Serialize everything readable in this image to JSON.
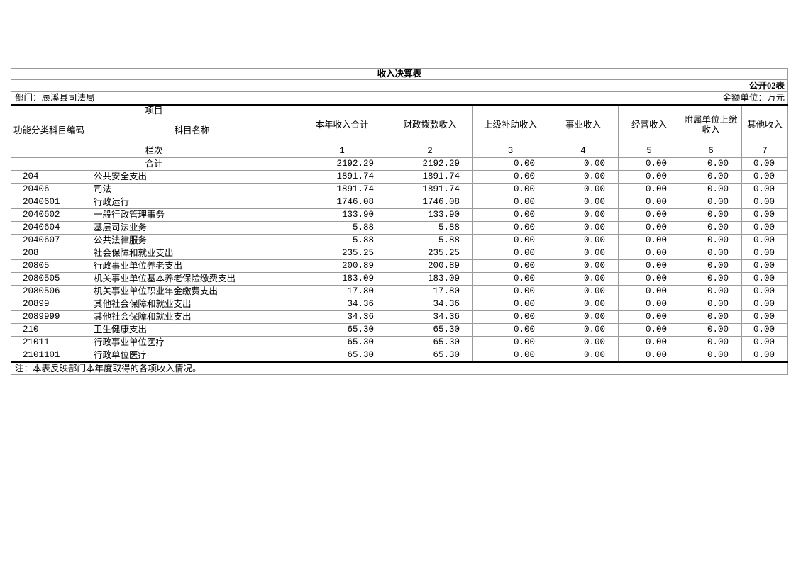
{
  "table": {
    "title": "收入决算表",
    "public_label": "公开02表",
    "department_label": "部门：辰溪县司法局",
    "unit_label": "金额单位：万元",
    "header": {
      "project": "项目",
      "code": "功能分类科目编码",
      "subject_name": "科目名称",
      "columns": [
        "本年收入合计",
        "财政拨款收入",
        "上级补助收入",
        "事业收入",
        "经营收入",
        "附属单位上缴收入",
        "其他收入"
      ],
      "lanci_label": "栏次",
      "lanci_numbers": [
        "1",
        "2",
        "3",
        "4",
        "5",
        "6",
        "7"
      ]
    },
    "rows": [
      {
        "total": true,
        "code": "",
        "name": "合计",
        "values": [
          "2192.29",
          "2192.29",
          "0.00",
          "0.00",
          "0.00",
          "0.00",
          "0.00"
        ]
      },
      {
        "total": false,
        "code": "204",
        "name": "公共安全支出",
        "values": [
          "1891.74",
          "1891.74",
          "0.00",
          "0.00",
          "0.00",
          "0.00",
          "0.00"
        ]
      },
      {
        "total": false,
        "code": "20406",
        "name": "司法",
        "values": [
          "1891.74",
          "1891.74",
          "0.00",
          "0.00",
          "0.00",
          "0.00",
          "0.00"
        ]
      },
      {
        "total": false,
        "code": "2040601",
        "name": "行政运行",
        "values": [
          "1746.08",
          "1746.08",
          "0.00",
          "0.00",
          "0.00",
          "0.00",
          "0.00"
        ]
      },
      {
        "total": false,
        "code": "2040602",
        "name": "一般行政管理事务",
        "values": [
          "133.90",
          "133.90",
          "0.00",
          "0.00",
          "0.00",
          "0.00",
          "0.00"
        ]
      },
      {
        "total": false,
        "code": "2040604",
        "name": "基层司法业务",
        "values": [
          "5.88",
          "5.88",
          "0.00",
          "0.00",
          "0.00",
          "0.00",
          "0.00"
        ]
      },
      {
        "total": false,
        "code": "2040607",
        "name": "公共法律服务",
        "values": [
          "5.88",
          "5.88",
          "0.00",
          "0.00",
          "0.00",
          "0.00",
          "0.00"
        ]
      },
      {
        "total": false,
        "code": "208",
        "name": "社会保障和就业支出",
        "values": [
          "235.25",
          "235.25",
          "0.00",
          "0.00",
          "0.00",
          "0.00",
          "0.00"
        ]
      },
      {
        "total": false,
        "code": "20805",
        "name": "行政事业单位养老支出",
        "values": [
          "200.89",
          "200.89",
          "0.00",
          "0.00",
          "0.00",
          "0.00",
          "0.00"
        ]
      },
      {
        "total": false,
        "code": "2080505",
        "name": "机关事业单位基本养老保险缴费支出",
        "values": [
          "183.09",
          "183.09",
          "0.00",
          "0.00",
          "0.00",
          "0.00",
          "0.00"
        ]
      },
      {
        "total": false,
        "code": "2080506",
        "name": "机关事业单位职业年金缴费支出",
        "values": [
          "17.80",
          "17.80",
          "0.00",
          "0.00",
          "0.00",
          "0.00",
          "0.00"
        ]
      },
      {
        "total": false,
        "code": "20899",
        "name": "其他社会保障和就业支出",
        "values": [
          "34.36",
          "34.36",
          "0.00",
          "0.00",
          "0.00",
          "0.00",
          "0.00"
        ]
      },
      {
        "total": false,
        "code": "2089999",
        "name": "其他社会保障和就业支出",
        "values": [
          "34.36",
          "34.36",
          "0.00",
          "0.00",
          "0.00",
          "0.00",
          "0.00"
        ]
      },
      {
        "total": false,
        "code": "210",
        "name": "卫生健康支出",
        "values": [
          "65.30",
          "65.30",
          "0.00",
          "0.00",
          "0.00",
          "0.00",
          "0.00"
        ]
      },
      {
        "total": false,
        "code": "21011",
        "name": "行政事业单位医疗",
        "values": [
          "65.30",
          "65.30",
          "0.00",
          "0.00",
          "0.00",
          "0.00",
          "0.00"
        ]
      },
      {
        "total": false,
        "code": "2101101",
        "name": "行政单位医疗",
        "values": [
          "65.30",
          "65.30",
          "0.00",
          "0.00",
          "0.00",
          "0.00",
          "0.00"
        ]
      }
    ],
    "note": "注：本表反映部门本年度取得的各项收入情况。"
  }
}
